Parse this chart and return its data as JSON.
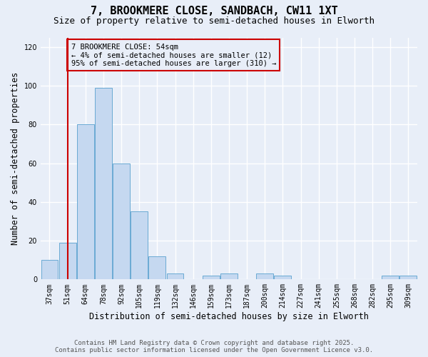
{
  "title1": "7, BROOKMERE CLOSE, SANDBACH, CW11 1XT",
  "title2": "Size of property relative to semi-detached houses in Elworth",
  "xlabel": "Distribution of semi-detached houses by size in Elworth",
  "ylabel": "Number of semi-detached properties",
  "categories": [
    "37sqm",
    "51sqm",
    "64sqm",
    "78sqm",
    "92sqm",
    "105sqm",
    "119sqm",
    "132sqm",
    "146sqm",
    "159sqm",
    "173sqm",
    "187sqm",
    "200sqm",
    "214sqm",
    "227sqm",
    "241sqm",
    "255sqm",
    "268sqm",
    "282sqm",
    "295sqm",
    "309sqm"
  ],
  "values": [
    10,
    19,
    80,
    99,
    60,
    35,
    12,
    3,
    0,
    2,
    3,
    0,
    3,
    2,
    0,
    0,
    0,
    0,
    0,
    2,
    2
  ],
  "bar_color": "#c5d8f0",
  "bar_edge_color": "#6aaad4",
  "annotation_title": "7 BROOKMERE CLOSE: 54sqm",
  "annotation_line1": "← 4% of semi-detached houses are smaller (12)",
  "annotation_line2": "95% of semi-detached houses are larger (310) →",
  "vline_color": "#cc0000",
  "annotation_box_color": "#cc0000",
  "ylim": [
    0,
    125
  ],
  "yticks": [
    0,
    20,
    40,
    60,
    80,
    100,
    120
  ],
  "footer1": "Contains HM Land Registry data © Crown copyright and database right 2025.",
  "footer2": "Contains public sector information licensed under the Open Government Licence v3.0.",
  "bg_color": "#e8eef8",
  "grid_color": "#ffffff",
  "title1_fontsize": 11,
  "title2_fontsize": 9,
  "axis_label_fontsize": 8.5,
  "tick_fontsize": 7,
  "footer_fontsize": 6.5,
  "annotation_fontsize": 7.5
}
